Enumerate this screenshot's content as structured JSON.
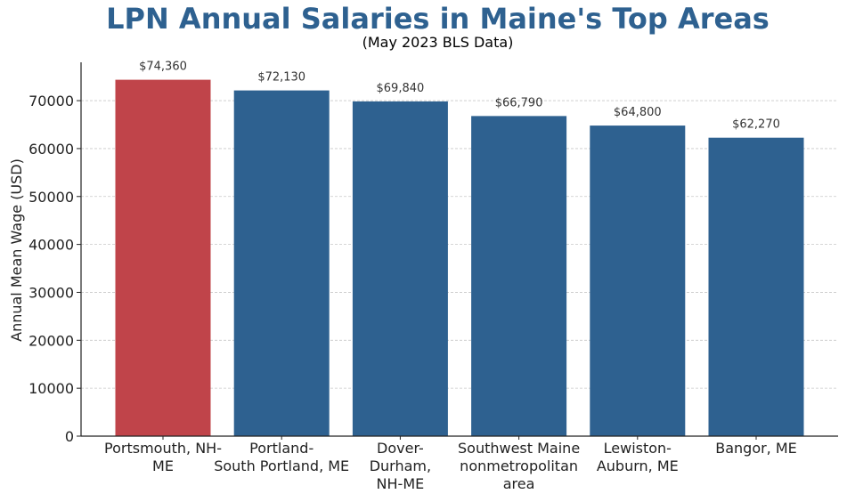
{
  "chart_data": {
    "type": "bar",
    "title": "LPN Annual Salaries in Maine's Top Areas",
    "subtitle": "(May 2023 BLS Data)",
    "ylabel": "Annual Mean Wage (USD)",
    "xlabel": "",
    "categories": [
      "Portsmouth, NH-ME",
      "Portland-South Portland, ME",
      "Dover-Durham, NH-ME",
      "Southwest Maine nonmetropolitan area",
      "Lewiston-Auburn, ME",
      "Bangor, ME"
    ],
    "category_label_lines": [
      [
        "Portsmouth, NH-",
        "ME"
      ],
      [
        "Portland-",
        "South Portland, ME"
      ],
      [
        "Dover-",
        "Durham,",
        "NH-ME"
      ],
      [
        "Southwest Maine",
        "nonmetropolitan",
        "area"
      ],
      [
        "Lewiston-",
        "Auburn, ME"
      ],
      [
        "Bangor, ME"
      ]
    ],
    "values": [
      74360,
      72130,
      69840,
      66790,
      64800,
      62270
    ],
    "data_labels": [
      "$74,360",
      "$72,130",
      "$69,840",
      "$66,790",
      "$64,800",
      "$62,270"
    ],
    "highlight_index": 0,
    "colors": {
      "highlight": "#c0444a",
      "default": "#2e6190",
      "title": "#2e6190"
    },
    "ylim": [
      0,
      78000
    ],
    "yticks": [
      0,
      10000,
      20000,
      30000,
      40000,
      50000,
      60000,
      70000
    ],
    "grid": "y-dashed",
    "legend": "none"
  }
}
